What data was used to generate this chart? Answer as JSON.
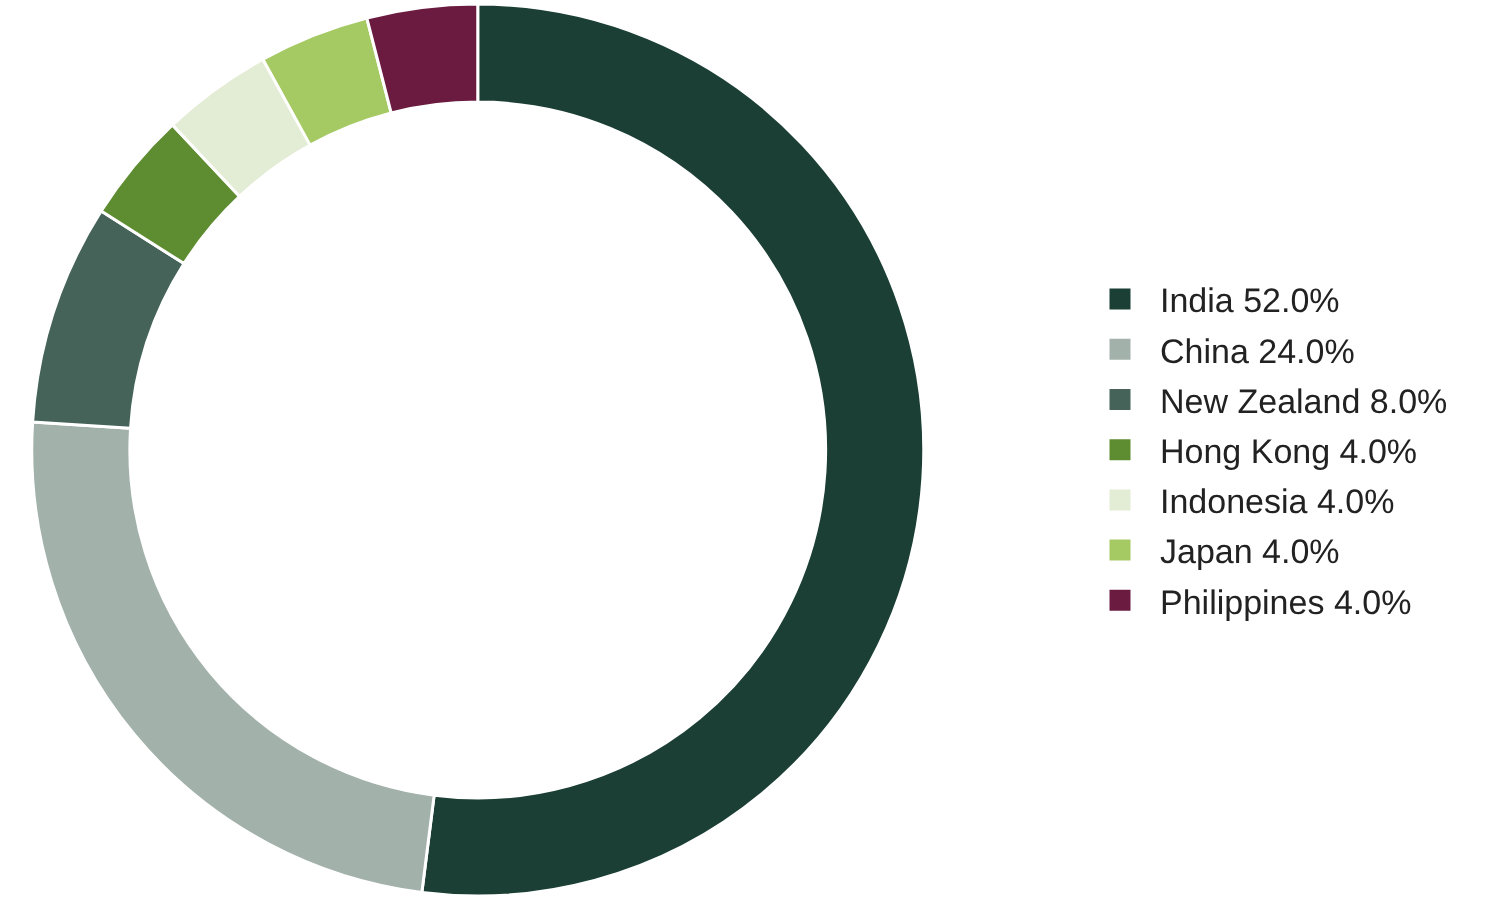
{
  "chart_data": {
    "type": "donut",
    "categories": [
      "India",
      "China",
      "New Zealand",
      "Hong Kong",
      "Indonesia",
      "Japan",
      "Philippines"
    ],
    "values": [
      52.0,
      24.0,
      8.0,
      4.0,
      4.0,
      4.0,
      4.0
    ],
    "value_labels": [
      "52.0%",
      "24.0%",
      "8.0%",
      "4.0%",
      "4.0%",
      "4.0%",
      "4.0%"
    ],
    "colors": [
      "#1b3f35",
      "#a3b1ab",
      "#456359",
      "#5e8c31",
      "#e3ecd4",
      "#a5c963",
      "#6b1b40"
    ],
    "legend": "right"
  }
}
